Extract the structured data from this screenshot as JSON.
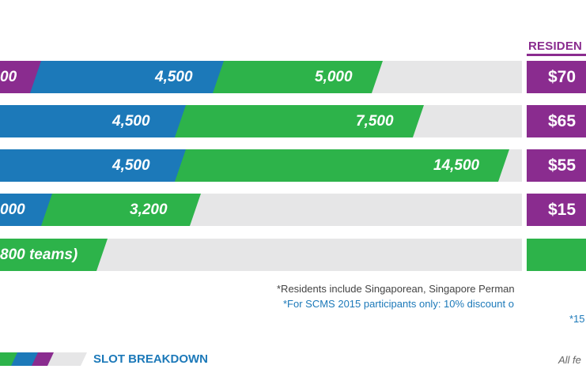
{
  "colors": {
    "track": "#e6e6e7",
    "purple": "#8a2c8f",
    "blue": "#1c79b9",
    "green": "#2db34a",
    "note_blue": "#1c79b9",
    "note_gray": "#444444"
  },
  "header": {
    "residents": "RESIDEN"
  },
  "chart_data": {
    "type": "bar",
    "stacked": true,
    "series": [
      {
        "name": "",
        "values": [
          null,
          null,
          null,
          null
        ]
      }
    ],
    "rows": [
      {
        "segments": [
          {
            "color": "purple",
            "label": "00"
          },
          {
            "color": "blue",
            "label": "4,500"
          },
          {
            "color": "green",
            "label": "5,000"
          }
        ],
        "price": "$70"
      },
      {
        "segments": [
          {
            "color": "blue",
            "label": "4,500"
          },
          {
            "color": "green",
            "label": "7,500"
          }
        ],
        "price": "$65"
      },
      {
        "segments": [
          {
            "color": "blue",
            "label": "4,500"
          },
          {
            "color": "green",
            "label": "14,500"
          }
        ],
        "price": "$55"
      },
      {
        "segments": [
          {
            "color": "blue",
            "label": "000"
          },
          {
            "color": "green",
            "label": "3,200"
          }
        ],
        "price": "$15"
      },
      {
        "segments": [
          {
            "color": "green",
            "label": "800 teams)"
          }
        ],
        "price": ""
      }
    ]
  },
  "notes": {
    "line1": "*Residents include Singaporean, Singapore Perman",
    "line2": "*For SCMS 2015 participants only: 10% discount o",
    "line3": "*15"
  },
  "legend": {
    "label": "SLOT BREAKDOWN"
  },
  "footer": {
    "all_fees": "All fe"
  }
}
